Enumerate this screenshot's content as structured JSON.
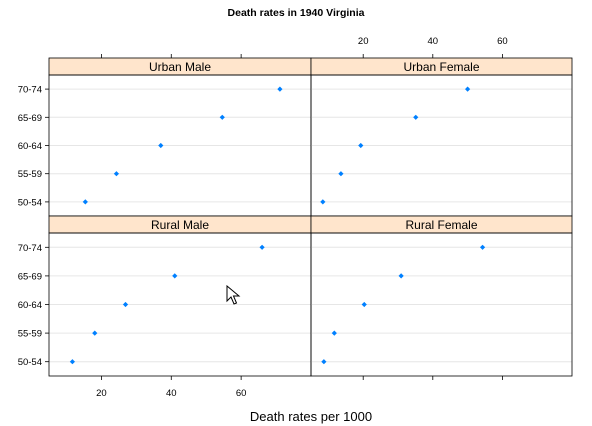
{
  "chart_data": {
    "type": "scatter",
    "title": "Death rates in 1940 Virginia",
    "xlabel": "Death rates per 1000",
    "ylabel": "",
    "xlim": [
      5,
      80
    ],
    "x_ticks": [
      20,
      40,
      60
    ],
    "categories": [
      "50-54",
      "55-59",
      "60-64",
      "65-69",
      "70-74"
    ],
    "panels": [
      {
        "name": "Urban Male",
        "values": [
          15.4,
          24.3,
          37.0,
          54.6,
          71.1
        ]
      },
      {
        "name": "Urban Female",
        "values": [
          8.4,
          13.6,
          19.3,
          35.1,
          50.0
        ]
      },
      {
        "name": "Rural Male",
        "values": [
          11.7,
          18.1,
          26.9,
          41.0,
          66.0
        ]
      },
      {
        "name": "Rural Female",
        "values": [
          8.7,
          11.7,
          20.3,
          30.9,
          54.3
        ]
      }
    ],
    "marker_color": "#0080ff",
    "strip_color": "#ffe5cc",
    "grid": true,
    "layout": "2x2 trellis",
    "x_axis_placement": "alternating top-right / bottom-left",
    "y_axis_placement": "left"
  }
}
